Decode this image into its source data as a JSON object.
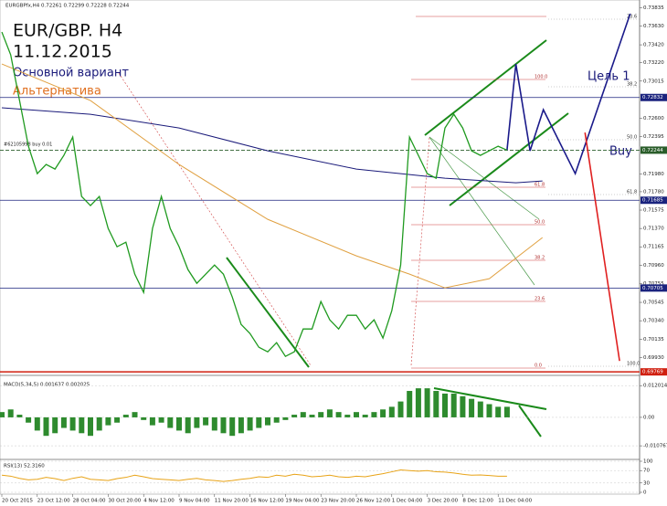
{
  "chart_data": [
    {
      "type": "line",
      "header": "EURGBPfx,H4  0.72261 0.72299 0.72228 0.72244",
      "title": "EUR/GBP. H4",
      "subtitle": "11.12.2015",
      "annotations": [
        "Основной вариант",
        "Альтернатива",
        "Цель 1",
        "Buy",
        "#62105998 buy 0.01"
      ],
      "fib_left": [
        "100.0",
        "61.8",
        "50.0",
        "38.2",
        "23.6",
        "0.0"
      ],
      "fib_right": [
        "23.6",
        "38.2",
        "50.0",
        "61.8",
        "100.0"
      ],
      "categories": [
        "20 Oct 2015",
        null,
        null,
        null,
        "23 Oct 12:00",
        null,
        null,
        null,
        "28 Oct 04:00",
        null,
        null,
        null,
        "30 Oct 20:00",
        null,
        null,
        null,
        "4 Nov 12:00",
        null,
        null,
        null,
        "9 Nov 04:00",
        null,
        null,
        null,
        "11 Nov 20:00",
        null,
        null,
        null,
        "16 Nov 12:00",
        null,
        null,
        null,
        "19 Nov 04:00",
        null,
        null,
        null,
        "23 Nov 20:00",
        null,
        null,
        null,
        "26 Nov 12:00",
        null,
        null,
        null,
        "1 Dec 04:00",
        null,
        null,
        null,
        "3 Dec 20:00",
        null,
        null,
        null,
        "8 Dec 12:00",
        null,
        null,
        null,
        "11 Dec 04:00",
        null
      ],
      "values": [
        0.73563,
        0.73308,
        0.72798,
        0.72288,
        0.71982,
        0.72084,
        0.72033,
        0.72186,
        0.7239,
        0.71727,
        0.71625,
        0.71727,
        0.7137,
        0.71166,
        0.71217,
        0.7086,
        0.70656,
        0.7137,
        0.71727,
        0.7137,
        0.71166,
        0.70911,
        0.70758,
        0.7086,
        0.70962,
        0.7086,
        0.70605,
        0.70299,
        0.70197,
        0.70044,
        0.69993,
        0.70095,
        0.69942,
        0.69993,
        0.70248,
        0.70248,
        0.70554,
        0.7035,
        0.70248,
        0.70401,
        0.70401,
        0.70248,
        0.7035,
        0.70146,
        0.70452,
        0.70962,
        0.7239,
        0.72186,
        0.71982,
        0.71931,
        0.72492,
        0.72645,
        0.72492,
        0.72237,
        0.72186,
        0.72237,
        0.72288,
        0.72244
      ],
      "color": "#1f9a1f",
      "overlays": [
        {
          "color": "#1a1a7a",
          "x": [
            0,
            10,
            20,
            30,
            40,
            50,
            58,
            61
          ],
          "values": [
            0.72717,
            0.72645,
            0.72492,
            0.72237,
            0.72033,
            0.71931,
            0.7188,
            0.719
          ]
        },
        {
          "color": "#e0a040",
          "x": [
            0,
            10,
            20,
            30,
            40,
            46,
            50,
            55,
            61
          ],
          "values": [
            0.73206,
            0.72798,
            0.72084,
            0.71472,
            0.71064,
            0.7086,
            0.70707,
            0.70809,
            0.71268
          ]
        },
        {
          "color": "#1a1a8a",
          "x": [
            57,
            58,
            59.6,
            61.1,
            64.7,
            70.9
          ],
          "values": [
            0.72244,
            0.73206,
            0.72237,
            0.72696,
            0.71982,
            0.73767
          ]
        },
        {
          "color": "#e02020",
          "x": [
            65.8,
            69.7
          ],
          "values": [
            0.72441,
            0.69891
          ]
        }
      ],
      "levels": [
        {
          "value": 0.72832,
          "color": "#1a237e"
        },
        {
          "value": 0.72244,
          "color": "#2a5d2a"
        },
        {
          "value": 0.71685,
          "color": "#1a237e"
        },
        {
          "value": 0.70705,
          "color": "#1a237e"
        },
        {
          "value": 0.69769,
          "color": "#d02010"
        }
      ],
      "ylim": [
        0.6974,
        0.739
      ],
      "yticks": [
        0.73835,
        {
          "value": 0.7363,
          "label": "0.73630"
        },
        {
          "value": 0.7342,
          "label": "0.73420"
        },
        {
          "value": 0.7322,
          "label": "0.73220"
        },
        0.73015,
        {
          "value": 0.726,
          "label": "0.72600"
        },
        0.72395,
        {
          "value": 0.7198,
          "label": "0.71980"
        },
        {
          "value": 0.7178,
          "label": "0.71780"
        },
        0.71575,
        {
          "value": 0.7137,
          "label": "0.71370"
        },
        0.71165,
        {
          "value": 0.7096,
          "label": "0.70960"
        },
        0.70755,
        0.70545,
        {
          "value": 0.7034,
          "label": "0.70340"
        },
        0.70135,
        {
          "value": 0.6993,
          "label": "0.69930"
        }
      ]
    },
    {
      "type": "bar",
      "title": "MACD(5,34,5) 0.001637 0.002025",
      "color": "#2e8b2e",
      "values": [
        0.002,
        0.003,
        0.001,
        -0.002,
        -0.005,
        -0.007,
        -0.006,
        -0.004,
        -0.005,
        -0.006,
        -0.007,
        -0.005,
        -0.003,
        -0.002,
        0.001,
        0.002,
        -0.001,
        -0.003,
        -0.002,
        -0.004,
        -0.005,
        -0.006,
        -0.004,
        -0.003,
        -0.005,
        -0.006,
        -0.007,
        -0.006,
        -0.005,
        -0.004,
        -0.003,
        -0.002,
        -0.001,
        0.001,
        0.002,
        0.001,
        0.002,
        0.003,
        0.002,
        0.001,
        0.002,
        0.001,
        0.002,
        0.003,
        0.004,
        0.006,
        0.01,
        0.011,
        0.011,
        0.01,
        0.009,
        0.009,
        0.008,
        0.007,
        0.006,
        0.005,
        0.004,
        0.004
      ],
      "ylim": [
        -0.0135,
        0.0145
      ],
      "yticks": [
        0.012014,
        {
          "value": 0,
          "label": "0.00"
        },
        -0.010767
      ]
    },
    {
      "type": "line",
      "title": "RSI(13) 52.3160",
      "color": "#e8a317",
      "values": [
        55,
        52,
        45,
        40,
        42,
        48,
        44,
        38,
        45,
        50,
        42,
        40,
        38,
        44,
        48,
        55,
        50,
        44,
        42,
        40,
        38,
        42,
        45,
        40,
        38,
        35,
        38,
        42,
        45,
        50,
        48,
        55,
        52,
        58,
        55,
        50,
        52,
        55,
        50,
        48,
        52,
        50,
        55,
        60,
        66,
        72,
        70,
        68,
        70,
        66,
        65,
        62,
        58,
        55,
        56,
        54,
        52,
        52
      ],
      "ylim": [
        0,
        100
      ],
      "yticks": [
        0,
        30,
        70,
        100
      ]
    }
  ]
}
